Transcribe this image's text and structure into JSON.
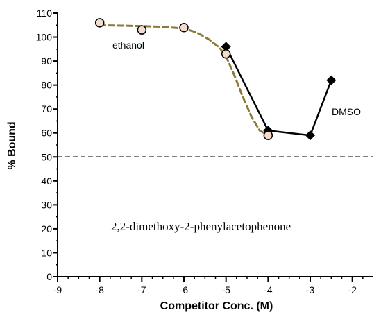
{
  "chart_data": {
    "type": "scatter",
    "xlabel": "Competitor Conc. (M)",
    "ylabel": "% Bound",
    "xlim": [
      -9,
      -1.5
    ],
    "ylim": [
      0,
      110
    ],
    "x_ticks": [
      -9,
      -8,
      -7,
      -6,
      -5,
      -4,
      -3,
      -2
    ],
    "y_ticks": [
      0,
      10,
      20,
      30,
      40,
      50,
      60,
      70,
      80,
      90,
      100,
      110
    ],
    "reference_line": {
      "y": 50,
      "style": "dashed",
      "color": "#000000"
    },
    "annotations": {
      "compound": "2,2-dimethoxy-2-phenylacetophenone",
      "ethanol_label": "ethanol",
      "dmso_label": "DMSO"
    },
    "series": [
      {
        "name": "ethanol",
        "marker": "circle",
        "color": "#8b7b3a",
        "fill": "#f3dccb",
        "points": [
          {
            "x": -8,
            "y": 106
          },
          {
            "x": -7,
            "y": 103
          },
          {
            "x": -6,
            "y": 104
          },
          {
            "x": -5,
            "y": 93
          },
          {
            "x": -4,
            "y": 59
          }
        ],
        "fit": [
          {
            "x": -8.0,
            "y": 105.0
          },
          {
            "x": -7.5,
            "y": 104.8
          },
          {
            "x": -7.0,
            "y": 104.6
          },
          {
            "x": -6.5,
            "y": 104.3
          },
          {
            "x": -6.0,
            "y": 103.6
          },
          {
            "x": -5.7,
            "y": 102.0
          },
          {
            "x": -5.4,
            "y": 99.0
          },
          {
            "x": -5.15,
            "y": 95.5
          },
          {
            "x": -5.0,
            "y": 92.0
          },
          {
            "x": -4.8,
            "y": 84.0
          },
          {
            "x": -4.6,
            "y": 75.0
          },
          {
            "x": -4.4,
            "y": 67.0
          },
          {
            "x": -4.2,
            "y": 61.0
          },
          {
            "x": -4.0,
            "y": 59.0
          }
        ]
      },
      {
        "name": "DMSO",
        "marker": "diamond",
        "color": "#000000",
        "fill": "#000000",
        "points": [
          {
            "x": -5,
            "y": 96
          },
          {
            "x": -4,
            "y": 61
          },
          {
            "x": -3,
            "y": 59
          },
          {
            "x": -2.5,
            "y": 82
          }
        ]
      }
    ]
  }
}
